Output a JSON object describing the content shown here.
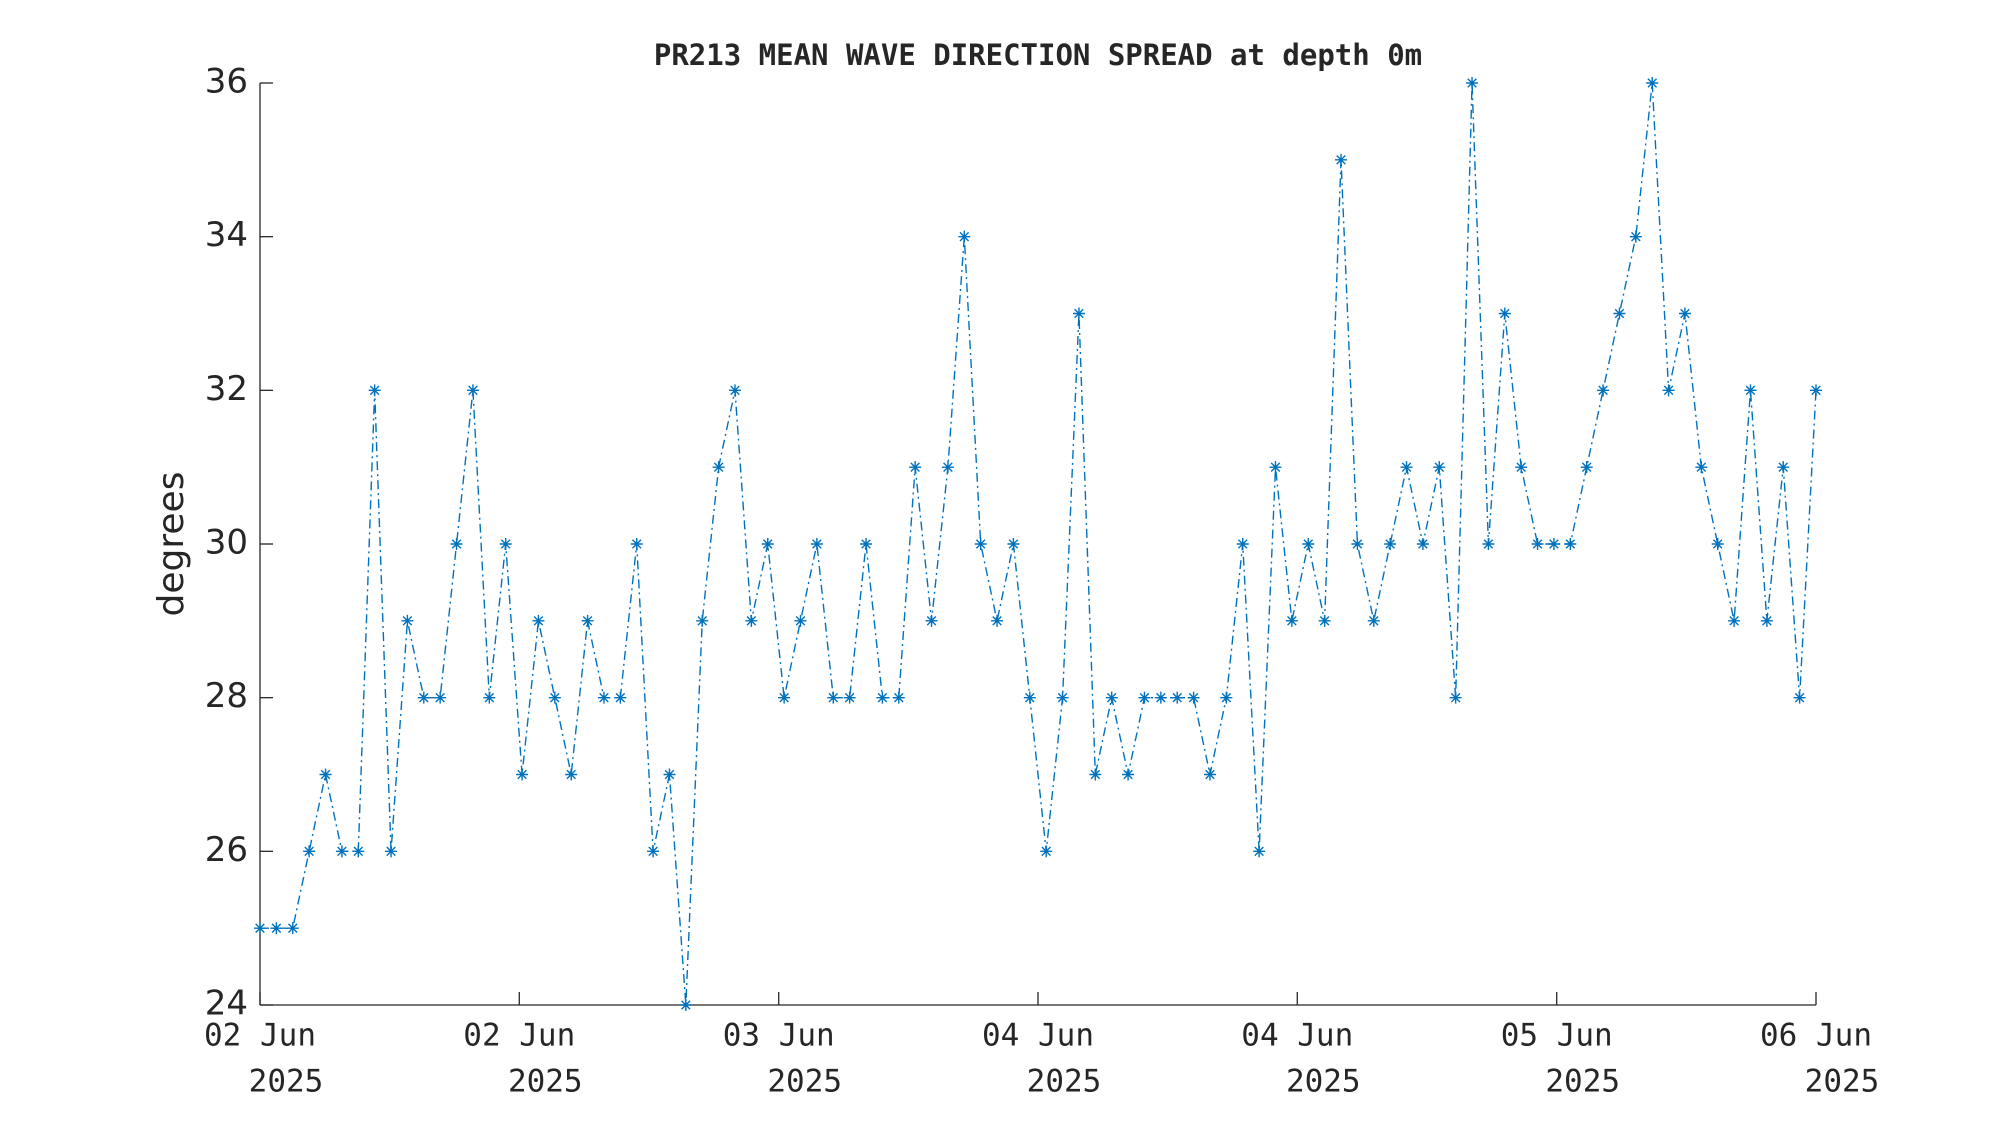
{
  "chart_data": {
    "type": "line",
    "title": "PR213 MEAN WAVE DIRECTION SPREAD at depth 0m",
    "y_label": "degrees",
    "x": [
      0,
      1,
      2,
      3,
      4,
      5,
      6,
      7,
      8,
      9,
      10,
      11,
      12,
      13,
      14,
      15,
      16,
      17,
      18,
      19,
      20,
      21,
      22,
      23,
      24,
      25,
      26,
      27,
      28,
      29,
      30,
      31,
      32,
      33,
      34,
      35,
      36,
      37,
      38,
      39,
      40,
      41,
      42,
      43,
      44,
      45,
      46,
      47,
      48,
      49,
      50,
      51,
      52,
      53,
      54,
      55,
      56,
      57,
      58,
      59,
      60,
      61,
      62,
      63,
      64,
      65,
      66,
      67,
      68,
      69,
      70,
      71,
      72,
      73,
      74,
      75,
      76,
      77,
      78,
      79,
      80,
      81,
      82,
      83,
      84,
      85,
      86,
      87,
      88,
      89,
      90,
      91,
      92,
      93,
      94,
      95
    ],
    "series": [
      {
        "name": "PR213",
        "color": "#0072bd",
        "values": [
          25,
          25,
          25,
          26,
          27,
          26,
          26,
          32,
          26,
          29,
          28,
          28,
          30,
          32,
          28,
          30,
          27,
          29,
          28,
          27,
          29,
          28,
          28,
          30,
          26,
          27,
          24,
          29,
          31,
          32,
          29,
          30,
          28,
          29,
          30,
          28,
          28,
          30,
          28,
          28,
          31,
          29,
          31,
          34,
          30,
          29,
          30,
          28,
          26,
          28,
          33,
          27,
          28,
          27,
          28,
          28,
          28,
          28,
          27,
          28,
          30,
          26,
          31,
          29,
          30,
          29,
          35,
          30,
          29,
          30,
          31,
          30,
          31,
          28,
          36,
          30,
          33,
          31,
          30,
          30,
          30,
          31,
          32,
          33,
          34,
          36,
          32,
          33,
          31,
          30,
          29,
          32,
          29,
          31,
          28,
          32
        ]
      }
    ],
    "xlim": [
      0,
      95
    ],
    "xticks": [
      {
        "value": 0,
        "label": [
          "02 Jun",
          "2025"
        ]
      },
      {
        "value": 15.83,
        "label": [
          "02 Jun",
          "2025"
        ]
      },
      {
        "value": 31.67,
        "label": [
          "03 Jun",
          "2025"
        ]
      },
      {
        "value": 47.5,
        "label": [
          "04 Jun",
          "2025"
        ]
      },
      {
        "value": 63.33,
        "label": [
          "04 Jun",
          "2025"
        ]
      },
      {
        "value": 79.17,
        "label": [
          "05 Jun",
          "2025"
        ]
      },
      {
        "value": 95,
        "label": [
          "06 Jun",
          "2025"
        ]
      }
    ],
    "ylim": [
      24,
      36
    ],
    "yticks": [
      24,
      26,
      28,
      30,
      32,
      34,
      36
    ],
    "grid": false
  }
}
